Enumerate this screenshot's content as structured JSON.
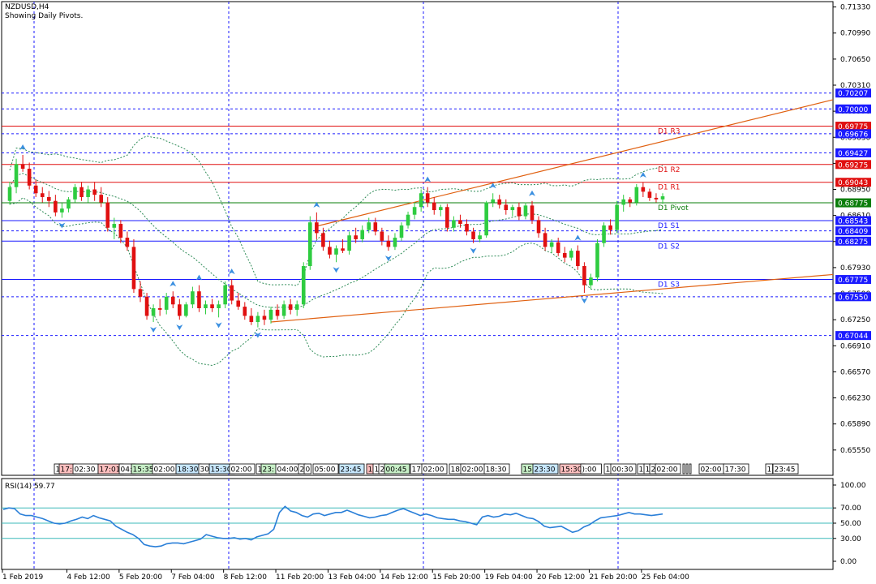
{
  "header": {
    "symbol_title": "NZDUSD,H4",
    "subtitle": "Showing Daily Pivots."
  },
  "colors": {
    "bull": "#2ecc40",
    "bear": "#e01010",
    "frame": "#000000",
    "grid_v": "#1a1aff",
    "band": "#2e8b57",
    "trend": "#e06010",
    "pivot_red": "#e01010",
    "pivot_blue": "#1a1aff",
    "pivot_green": "#0a7d0a",
    "rsi_line": "#2a7fd8",
    "rsi_level": "#3cb8b8",
    "arrow": "#3a8fe0"
  },
  "price_axis": {
    "min": 0.6522,
    "max": 0.714,
    "ticks": [
      "0.71330",
      "0.70990",
      "0.70650",
      "0.70310",
      "0.69970",
      "0.69630",
      "0.69290",
      "0.68950",
      "0.68610",
      "0.68270",
      "0.67930",
      "0.67590",
      "0.67250",
      "0.66910",
      "0.66570",
      "0.66230",
      "0.65890",
      "0.65550"
    ]
  },
  "level_labels": [
    {
      "text": "0.70207",
      "value": 0.70207,
      "style": "dash",
      "bg": "#1a1aff"
    },
    {
      "text": "0.70000",
      "value": 0.7,
      "style": "dash",
      "bg": "#1a1aff"
    },
    {
      "text": "0.69775",
      "value": 0.69775,
      "style": "solid",
      "bg": "#e01010"
    },
    {
      "text": "0.69676",
      "value": 0.69676,
      "style": "dash",
      "bg": "#1a1aff"
    },
    {
      "text": "0.69427",
      "value": 0.69427,
      "style": "dash",
      "bg": "#1a1aff"
    },
    {
      "text": "0.69275",
      "value": 0.69275,
      "style": "solid",
      "bg": "#e01010"
    },
    {
      "text": "0.69043",
      "value": 0.69043,
      "style": "solid",
      "bg": "#e01010"
    },
    {
      "text": "0.68775",
      "value": 0.68775,
      "style": "solid",
      "bg": "#0a7d0a"
    },
    {
      "text": "0.68543",
      "value": 0.68543,
      "style": "solid",
      "bg": "#1a1aff"
    },
    {
      "text": "0.68409",
      "value": 0.68409,
      "style": "dash",
      "bg": "#1a1aff"
    },
    {
      "text": "0.68275",
      "value": 0.68275,
      "style": "solid",
      "bg": "#1a1aff"
    },
    {
      "text": "0.67775",
      "value": 0.67775,
      "style": "solid",
      "bg": "#1a1aff"
    },
    {
      "text": "0.67550",
      "value": 0.6755,
      "style": "dash",
      "bg": "#1a1aff"
    },
    {
      "text": "0.67044",
      "value": 0.67044,
      "style": "dash",
      "bg": "#1a1aff"
    }
  ],
  "pivot_labels": [
    {
      "text": "D1 R3",
      "value": 0.69775
    },
    {
      "text": "D1 R2",
      "value": 0.69275
    },
    {
      "text": "D1 R1",
      "value": 0.69043
    },
    {
      "text": "D1 Pivot",
      "value": 0.68775
    },
    {
      "text": "D1 S1",
      "value": 0.68543
    },
    {
      "text": "D1 S2",
      "value": 0.68275
    },
    {
      "text": "D1 S3",
      "value": 0.67775
    }
  ],
  "time_axis": [
    {
      "label": "1 Feb 2019",
      "bar": 0
    },
    {
      "label": "4 Feb 12:00",
      "bar": 9
    },
    {
      "label": "5 Feb 20:00",
      "bar": 17
    },
    {
      "label": "7 Feb 04:00",
      "bar": 25
    },
    {
      "label": "8 Feb 12:00",
      "bar": 33
    },
    {
      "label": "11 Feb 20:00",
      "bar": 41
    },
    {
      "label": "13 Feb 04:00",
      "bar": 49
    },
    {
      "label": "14 Feb 12:00",
      "bar": 57
    },
    {
      "label": "15 Feb 20:00",
      "bar": 65
    },
    {
      "label": "19 Feb 04:00",
      "bar": 73
    },
    {
      "label": "20 Feb 12:00",
      "bar": 81
    },
    {
      "label": "21 Feb 20:00",
      "bar": 89
    },
    {
      "label": "25 Feb 04:00",
      "bar": 97
    }
  ],
  "session_strip": [
    {
      "t": "1",
      "x": 67,
      "bg": "#ffffff"
    },
    {
      "t": "17:",
      "x": 73,
      "bg": "#ffc0c0"
    },
    {
      "t": "02:30",
      "x": 90,
      "bg": "#ffffff"
    },
    {
      "t": "17:01",
      "x": 121,
      "bg": "#ffc0c0"
    },
    {
      "t": "04:",
      "x": 147,
      "bg": "#ffffff"
    },
    {
      "t": "15:35",
      "x": 162,
      "bg": "#c8f0c8"
    },
    {
      "t": "02:00",
      "x": 188,
      "bg": "#ffffff"
    },
    {
      "t": "18:30",
      "x": 217,
      "bg": "#c8e8ff"
    },
    {
      "t": "30",
      "x": 245,
      "bg": "#ffffff"
    },
    {
      "t": "15:30",
      "x": 258,
      "bg": "#c8e8ff"
    },
    {
      "t": "02:00",
      "x": 283,
      "bg": "#ffffff"
    },
    {
      "t": "1",
      "x": 316,
      "bg": "#ffffff"
    },
    {
      "t": "23:",
      "x": 322,
      "bg": "#c8f0c8"
    },
    {
      "t": "04:00",
      "x": 340,
      "bg": "#ffffff"
    },
    {
      "t": "2",
      "x": 368,
      "bg": "#ffffff"
    },
    {
      "t": "0",
      "x": 375,
      "bg": "#ffffff"
    },
    {
      "t": "05:00",
      "x": 386,
      "bg": "#ffffff"
    },
    {
      "t": "23:45",
      "x": 418,
      "bg": "#c8e8ff"
    },
    {
      "t": "1",
      "x": 452,
      "bg": "#ffc0c0"
    },
    {
      "t": "1",
      "x": 460,
      "bg": "#ffffff"
    },
    {
      "t": "2",
      "x": 467,
      "bg": "#ffffff"
    },
    {
      "t": "00:45",
      "x": 474,
      "bg": "#c8f0c8"
    },
    {
      "t": "17:",
      "x": 506,
      "bg": "#ffffff"
    },
    {
      "t": "02:00",
      "x": 520,
      "bg": "#ffffff"
    },
    {
      "t": "18:",
      "x": 554,
      "bg": "#ffffff"
    },
    {
      "t": "02:00",
      "x": 568,
      "bg": "#ffffff"
    },
    {
      "t": "18:30",
      "x": 597,
      "bg": "#ffffff"
    },
    {
      "t": "15:",
      "x": 643,
      "bg": "#c8f0c8"
    },
    {
      "t": "23:30",
      "x": 657,
      "bg": "#c8e8ff"
    },
    {
      "t": "15:30",
      "x": 690,
      "bg": "#ffc0c0"
    },
    {
      "t": "):00",
      "x": 716,
      "bg": "#ffffff"
    },
    {
      "t": "1",
      "x": 745,
      "bg": "#ffffff"
    },
    {
      "t": "00:30",
      "x": 753,
      "bg": "#ffffff"
    },
    {
      "t": "1",
      "x": 786,
      "bg": "#ffffff"
    },
    {
      "t": "1",
      "x": 794,
      "bg": "#ffffff"
    },
    {
      "t": "2",
      "x": 801,
      "bg": "#ffffff"
    },
    {
      "t": "02:00",
      "x": 808,
      "bg": "#ffffff"
    },
    {
      "t": "02:00",
      "x": 862,
      "bg": "#ffffff"
    },
    {
      "t": "17:30",
      "x": 892,
      "bg": "#ffffff"
    },
    {
      "t": "1",
      "x": 944,
      "bg": "#ffffff"
    },
    {
      "t": "23:45",
      "x": 953,
      "bg": "#ffffff"
    }
  ],
  "rsi": {
    "title": "RSI(14) 59.77",
    "ticks": [
      "100.00",
      "70.00",
      "50.00",
      "30.00",
      "0.00"
    ],
    "levels": [
      70,
      50,
      30
    ],
    "values": [
      68,
      70,
      69,
      62,
      60,
      60,
      58,
      56,
      53,
      50,
      49,
      50,
      53,
      55,
      58,
      56,
      60,
      57,
      55,
      53,
      46,
      42,
      38,
      35,
      30,
      22,
      20,
      19,
      20,
      23,
      24,
      24,
      23,
      25,
      27,
      29,
      35,
      33,
      31,
      30,
      30,
      31,
      29,
      30,
      28,
      32,
      34,
      36,
      42,
      64,
      72,
      66,
      64,
      60,
      58,
      62,
      63,
      60,
      62,
      64,
      64,
      67,
      64,
      61,
      59,
      57,
      58,
      60,
      61,
      64,
      67,
      69,
      66,
      63,
      60,
      62,
      60,
      57,
      56,
      55,
      55,
      53,
      52,
      50,
      48,
      58,
      60,
      58,
      59,
      62,
      61,
      63,
      60,
      57,
      56,
      52,
      46,
      44,
      45,
      46,
      42,
      38,
      40,
      45,
      48,
      53,
      57,
      58,
      59,
      60,
      62,
      64,
      62,
      62,
      61,
      60,
      61,
      62
    ]
  },
  "chart_data": {
    "type": "candlestick",
    "symbol": "NZDUSD",
    "timeframe": "H4",
    "ylim": [
      0.6522,
      0.714
    ],
    "candles": [
      [
        0.688,
        0.6905,
        0.6875,
        0.6898
      ],
      [
        0.6898,
        0.6935,
        0.689,
        0.6928
      ],
      [
        0.6928,
        0.694,
        0.6918,
        0.6922
      ],
      [
        0.6922,
        0.693,
        0.6895,
        0.69
      ],
      [
        0.69,
        0.6908,
        0.6885,
        0.689
      ],
      [
        0.689,
        0.6898,
        0.6878,
        0.6885
      ],
      [
        0.6885,
        0.6893,
        0.6872,
        0.688
      ],
      [
        0.688,
        0.6888,
        0.686,
        0.6865
      ],
      [
        0.6865,
        0.6877,
        0.6858,
        0.687
      ],
      [
        0.687,
        0.6885,
        0.6865,
        0.6882
      ],
      [
        0.6882,
        0.6902,
        0.6878,
        0.6898
      ],
      [
        0.6898,
        0.6905,
        0.688,
        0.6885
      ],
      [
        0.6885,
        0.69,
        0.6878,
        0.6895
      ],
      [
        0.6895,
        0.6905,
        0.688,
        0.6888
      ],
      [
        0.6888,
        0.6898,
        0.6872,
        0.6878
      ],
      [
        0.6878,
        0.6885,
        0.684,
        0.6845
      ],
      [
        0.6845,
        0.6858,
        0.683,
        0.685
      ],
      [
        0.685,
        0.6855,
        0.6825,
        0.6832
      ],
      [
        0.6832,
        0.684,
        0.6815,
        0.682
      ],
      [
        0.682,
        0.683,
        0.676,
        0.6765
      ],
      [
        0.6765,
        0.6775,
        0.6748,
        0.6755
      ],
      [
        0.6755,
        0.676,
        0.6725,
        0.673
      ],
      [
        0.673,
        0.6745,
        0.6722,
        0.674
      ],
      [
        0.674,
        0.6752,
        0.673,
        0.6738
      ],
      [
        0.6738,
        0.676,
        0.6732,
        0.6755
      ],
      [
        0.6755,
        0.6762,
        0.674,
        0.6745
      ],
      [
        0.6745,
        0.6752,
        0.6725,
        0.673
      ],
      [
        0.673,
        0.6748,
        0.6728,
        0.6745
      ],
      [
        0.6745,
        0.6768,
        0.674,
        0.6762
      ],
      [
        0.6762,
        0.677,
        0.6735,
        0.674
      ],
      [
        0.674,
        0.675,
        0.6732,
        0.6745
      ],
      [
        0.6745,
        0.6752,
        0.6735,
        0.674
      ],
      [
        0.674,
        0.675,
        0.6728,
        0.6745
      ],
      [
        0.6745,
        0.6775,
        0.674,
        0.677
      ],
      [
        0.677,
        0.6778,
        0.6745,
        0.675
      ],
      [
        0.675,
        0.676,
        0.6738,
        0.6742
      ],
      [
        0.6742,
        0.6748,
        0.6725,
        0.673
      ],
      [
        0.673,
        0.674,
        0.6718,
        0.6722
      ],
      [
        0.6722,
        0.6735,
        0.6715,
        0.673
      ],
      [
        0.673,
        0.6738,
        0.6718,
        0.6725
      ],
      [
        0.6725,
        0.6742,
        0.672,
        0.6738
      ],
      [
        0.6738,
        0.6745,
        0.6725,
        0.673
      ],
      [
        0.673,
        0.675,
        0.6726,
        0.6745
      ],
      [
        0.6745,
        0.6752,
        0.6732,
        0.6738
      ],
      [
        0.6738,
        0.675,
        0.673,
        0.6745
      ],
      [
        0.6745,
        0.68,
        0.674,
        0.6795
      ],
      [
        0.6795,
        0.686,
        0.679,
        0.6852
      ],
      [
        0.6852,
        0.6865,
        0.683,
        0.6838
      ],
      [
        0.6838,
        0.6845,
        0.6815,
        0.682
      ],
      [
        0.682,
        0.6828,
        0.6805,
        0.681
      ],
      [
        0.681,
        0.6822,
        0.68,
        0.6818
      ],
      [
        0.6818,
        0.683,
        0.6812,
        0.6815
      ],
      [
        0.6815,
        0.684,
        0.681,
        0.6835
      ],
      [
        0.6835,
        0.6845,
        0.6825,
        0.683
      ],
      [
        0.683,
        0.6848,
        0.6826,
        0.6842
      ],
      [
        0.6842,
        0.6858,
        0.6838,
        0.6852
      ],
      [
        0.6852,
        0.6858,
        0.6835,
        0.684
      ],
      [
        0.684,
        0.6845,
        0.6822,
        0.6828
      ],
      [
        0.6828,
        0.6835,
        0.6815,
        0.682
      ],
      [
        0.682,
        0.6838,
        0.6816,
        0.6832
      ],
      [
        0.6832,
        0.6852,
        0.6828,
        0.6848
      ],
      [
        0.6848,
        0.6866,
        0.6844,
        0.6862
      ],
      [
        0.6862,
        0.6878,
        0.6856,
        0.6872
      ],
      [
        0.6872,
        0.6895,
        0.6866,
        0.689
      ],
      [
        0.689,
        0.6898,
        0.6872,
        0.6878
      ],
      [
        0.6878,
        0.6885,
        0.6862,
        0.6868
      ],
      [
        0.6868,
        0.6875,
        0.686,
        0.6872
      ],
      [
        0.6872,
        0.6876,
        0.684,
        0.6845
      ],
      [
        0.6845,
        0.686,
        0.684,
        0.6855
      ],
      [
        0.6855,
        0.6862,
        0.6845,
        0.685
      ],
      [
        0.685,
        0.6856,
        0.6835,
        0.684
      ],
      [
        0.684,
        0.6845,
        0.6825,
        0.683
      ],
      [
        0.683,
        0.684,
        0.6826,
        0.6835
      ],
      [
        0.6835,
        0.688,
        0.6832,
        0.6878
      ],
      [
        0.6878,
        0.689,
        0.6872,
        0.6882
      ],
      [
        0.6882,
        0.6888,
        0.687,
        0.6875
      ],
      [
        0.6875,
        0.6882,
        0.6862,
        0.6868
      ],
      [
        0.6868,
        0.6875,
        0.686,
        0.6872
      ],
      [
        0.6872,
        0.6878,
        0.6855,
        0.686
      ],
      [
        0.686,
        0.6878,
        0.6856,
        0.6874
      ],
      [
        0.6874,
        0.688,
        0.685,
        0.6855
      ],
      [
        0.6855,
        0.686,
        0.6832,
        0.6838
      ],
      [
        0.6838,
        0.6845,
        0.6815,
        0.682
      ],
      [
        0.682,
        0.683,
        0.6812,
        0.6826
      ],
      [
        0.6826,
        0.6832,
        0.6808,
        0.6812
      ],
      [
        0.6812,
        0.682,
        0.68,
        0.6806
      ],
      [
        0.6806,
        0.6818,
        0.6802,
        0.6815
      ],
      [
        0.6815,
        0.6822,
        0.679,
        0.6795
      ],
      [
        0.6795,
        0.68,
        0.676,
        0.677
      ],
      [
        0.677,
        0.6785,
        0.6765,
        0.678
      ],
      [
        0.678,
        0.683,
        0.6775,
        0.6825
      ],
      [
        0.6825,
        0.6852,
        0.682,
        0.6848
      ],
      [
        0.6848,
        0.6856,
        0.6836,
        0.6842
      ],
      [
        0.6842,
        0.688,
        0.6838,
        0.6875
      ],
      [
        0.6875,
        0.6888,
        0.6866,
        0.6882
      ],
      [
        0.6882,
        0.6885,
        0.6872,
        0.6878
      ],
      [
        0.6878,
        0.6902,
        0.6874,
        0.6898
      ],
      [
        0.6898,
        0.6904,
        0.6885,
        0.6892
      ],
      [
        0.6892,
        0.6896,
        0.688,
        0.6884
      ],
      [
        0.6884,
        0.689,
        0.6878,
        0.6882
      ],
      [
        0.6882,
        0.689,
        0.6876,
        0.6886
      ]
    ]
  }
}
